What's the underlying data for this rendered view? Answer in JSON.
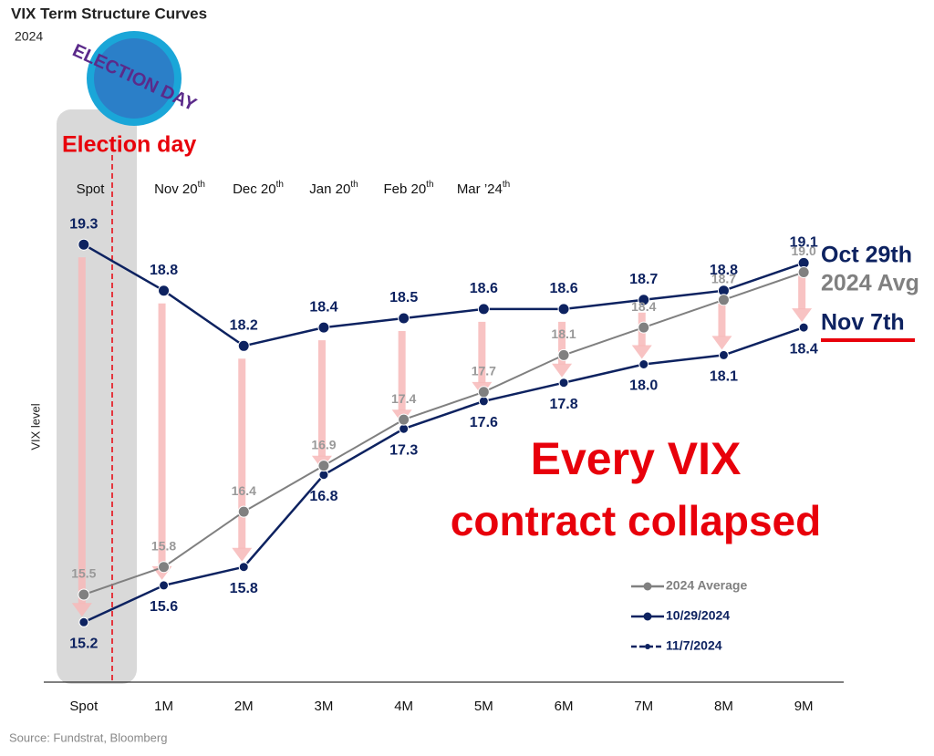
{
  "chart_data": {
    "type": "line",
    "title": "VIX Term Structure Curves",
    "subtitle": "2024",
    "badge_text": "ELECTION DAY",
    "event_label": "Election day",
    "y_label": "VIX level",
    "source": "Source: Fundstrat, Bloomberg",
    "period_labels": [
      {
        "text": "Spot",
        "suffix": null
      },
      {
        "text": "Nov 20",
        "suffix": "th"
      },
      {
        "text": "Dec 20",
        "suffix": "th"
      },
      {
        "text": "Jan 20",
        "suffix": "th"
      },
      {
        "text": "Feb 20",
        "suffix": "th"
      },
      {
        "text": "Mar ’24",
        "suffix": "th"
      }
    ],
    "annotations": [
      "Every VIX",
      "contract collapsed"
    ],
    "end_labels": [
      "Oct 29th",
      "2024 Avg",
      "Nov 7th"
    ],
    "categories": [
      "Spot",
      "1M",
      "2M",
      "3M",
      "4M",
      "5M",
      "6M",
      "7M",
      "8M",
      "9M"
    ],
    "ylim": [
      14.5,
      19.5
    ],
    "series": [
      {
        "name": "2024 Average",
        "color": "#808080",
        "values": [
          15.5,
          15.8,
          16.4,
          16.9,
          17.4,
          17.7,
          18.1,
          18.4,
          18.7,
          19.0
        ],
        "value_labels": [
          "15.5",
          "15.8",
          "16.4",
          "16.9",
          "17.4",
          "17.7",
          "18.1",
          "18.4",
          "18.7",
          "19.0"
        ]
      },
      {
        "name": "10/29/2024",
        "color": "#0d2260",
        "values": [
          19.3,
          18.8,
          18.2,
          18.4,
          18.5,
          18.6,
          18.6,
          18.7,
          18.8,
          19.1
        ],
        "value_labels": [
          "19.3",
          "18.8",
          "18.2",
          "18.4",
          "18.5",
          "18.6",
          "18.6",
          "18.7",
          "18.8",
          "19.1"
        ]
      },
      {
        "name": "11/7/2024",
        "color": "#0d2260",
        "values": [
          15.2,
          15.6,
          15.8,
          16.8,
          17.3,
          17.6,
          17.8,
          18.0,
          18.1,
          18.4
        ],
        "value_labels": [
          "15.2",
          "15.6",
          "15.8",
          "16.8",
          "17.3",
          "17.6",
          "17.8",
          "18.0",
          "18.1",
          "18.4"
        ]
      }
    ]
  }
}
